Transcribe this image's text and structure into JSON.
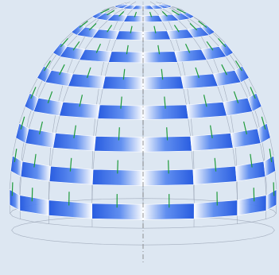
{
  "viewport": {
    "background": "#dde7f2"
  },
  "model": {
    "type": "geodesic-dome-structural-model",
    "colors": {
      "panel_dark": "#1f55e0",
      "panel_mid": "#5b8bf0",
      "panel_light": "#ffffff",
      "frame_line": "#8a94a6",
      "member_green": "#1e9b3a",
      "axis_dash": "#7a7a7a"
    }
  }
}
